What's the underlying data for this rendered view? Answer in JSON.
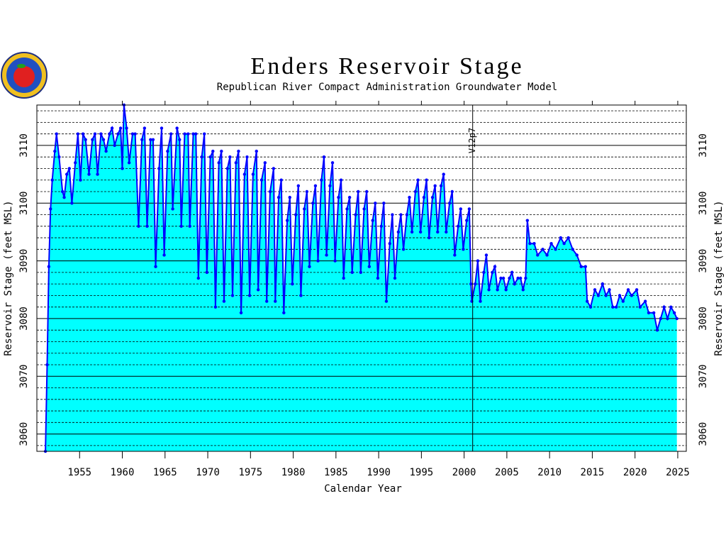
{
  "chart_data": {
    "type": "line",
    "title": "Enders Reservoir Stage",
    "subtitle": "Republican River Compact Administration Groundwater Model",
    "x_label": "Calendar Year",
    "y_label": "Reservoir Stage (feet MSL)",
    "xlim": [
      1950,
      2026
    ],
    "xticks": [
      1955,
      1960,
      1965,
      1970,
      1975,
      1980,
      1985,
      1990,
      1995,
      2000,
      2005,
      2010,
      2015,
      2020,
      2025
    ],
    "ylim": [
      3057,
      3117
    ],
    "yticks": [
      3060,
      3070,
      3080,
      3090,
      3100,
      3110
    ],
    "minor_yticks": [
      3058,
      3062,
      3064,
      3066,
      3068,
      3072,
      3074,
      3076,
      3078,
      3082,
      3084,
      3086,
      3088,
      3092,
      3094,
      3096,
      3098,
      3102,
      3104,
      3106,
      3108,
      3112,
      3114,
      3116
    ],
    "grid": true,
    "fill_color": "#00ffff",
    "annotations": [
      {
        "x": 2001,
        "label": "V12p7"
      }
    ],
    "x": [
      1951.0,
      1951.2,
      1951.4,
      1951.6,
      1951.8,
      1952.1,
      1952.3,
      1952.6,
      1953.0,
      1953.2,
      1953.5,
      1953.8,
      1954.1,
      1954.5,
      1954.8,
      1955.1,
      1955.4,
      1955.7,
      1956.1,
      1956.5,
      1956.8,
      1957.1,
      1957.5,
      1957.8,
      1958.1,
      1958.5,
      1958.8,
      1959.1,
      1959.5,
      1959.8,
      1960.0,
      1960.2,
      1960.5,
      1960.8,
      1961.2,
      1961.5,
      1961.9,
      1962.3,
      1962.6,
      1962.9,
      1963.3,
      1963.6,
      1963.9,
      1964.3,
      1964.6,
      1964.9,
      1965.3,
      1965.7,
      1965.9,
      1966.4,
      1966.7,
      1966.9,
      1967.3,
      1967.7,
      1967.9,
      1968.3,
      1968.6,
      1968.9,
      1969.3,
      1969.6,
      1969.9,
      1970.3,
      1970.6,
      1970.9,
      1971.3,
      1971.6,
      1971.9,
      1972.3,
      1972.6,
      1972.9,
      1973.3,
      1973.6,
      1973.9,
      1974.3,
      1974.6,
      1974.9,
      1975.3,
      1975.7,
      1975.9,
      1976.3,
      1976.7,
      1976.9,
      1977.3,
      1977.7,
      1977.9,
      1978.3,
      1978.6,
      1978.9,
      1979.3,
      1979.6,
      1979.9,
      1980.3,
      1980.6,
      1980.9,
      1981.3,
      1981.6,
      1981.9,
      1982.3,
      1982.6,
      1982.9,
      1983.3,
      1983.6,
      1983.9,
      1984.3,
      1984.6,
      1984.9,
      1985.3,
      1985.6,
      1985.9,
      1986.3,
      1986.6,
      1986.9,
      1987.3,
      1987.6,
      1987.9,
      1988.3,
      1988.6,
      1988.9,
      1989.3,
      1989.6,
      1989.9,
      1990.3,
      1990.6,
      1990.9,
      1991.3,
      1991.6,
      1991.9,
      1992.3,
      1992.6,
      1992.9,
      1993.3,
      1993.6,
      1993.9,
      1994.3,
      1994.6,
      1994.9,
      1995.3,
      1995.6,
      1995.9,
      1996.3,
      1996.6,
      1996.9,
      1997.3,
      1997.6,
      1997.9,
      1998.3,
      1998.6,
      1998.9,
      1999.3,
      1999.6,
      1999.9,
      2000.3,
      2000.6,
      2000.8,
      2000.9,
      2001.3,
      2001.6,
      2001.9,
      2002.3,
      2002.6,
      2002.9,
      2003.3,
      2003.6,
      2003.9,
      2004.3,
      2004.6,
      2004.9,
      2005.3,
      2005.6,
      2005.9,
      2006.3,
      2006.6,
      2006.9,
      2007.2,
      2007.4,
      2007.7,
      2008.2,
      2008.6,
      2009.2,
      2009.7,
      2010.2,
      2010.7,
      2011.3,
      2011.7,
      2012.2,
      2012.7,
      2013.2,
      2013.7,
      2014.2,
      2014.4,
      2014.8,
      2015.3,
      2015.7,
      2016.2,
      2016.6,
      2017.0,
      2017.4,
      2017.8,
      2018.2,
      2018.6,
      2019.2,
      2019.6,
      2020.2,
      2020.6,
      2021.2,
      2021.6,
      2022.2,
      2022.6,
      2023.0,
      2023.4,
      2023.8,
      2024.2,
      2024.6,
      2024.9
    ],
    "series": [
      {
        "color": "#0000ff",
        "values": [
          3057,
          3072,
          3089,
          3099,
          3104,
          3109,
          3112,
          3108,
          3102,
          3101,
          3105,
          3106,
          3100,
          3107,
          3112,
          3104,
          3112,
          3111,
          3105,
          3111,
          3112,
          3105,
          3112,
          3111,
          3109,
          3112,
          3113,
          3110,
          3112,
          3113,
          3106,
          3117,
          3113,
          3107,
          3112,
          3112,
          3096,
          3111,
          3113,
          3096,
          3111,
          3111,
          3089,
          3106,
          3113,
          3091,
          3109,
          3112,
          3099,
          3113,
          3111,
          3096,
          3112,
          3112,
          3096,
          3112,
          3112,
          3087,
          3108,
          3112,
          3088,
          3108,
          3109,
          3082,
          3107,
          3109,
          3083,
          3106,
          3108,
          3084,
          3107,
          3109,
          3081,
          3105,
          3108,
          3084,
          3105,
          3109,
          3085,
          3104,
          3107,
          3083,
          3102,
          3106,
          3083,
          3101,
          3104,
          3081,
          3097,
          3101,
          3086,
          3098,
          3103,
          3084,
          3099,
          3102,
          3089,
          3100,
          3103,
          3090,
          3104,
          3108,
          3091,
          3103,
          3107,
          3090,
          3101,
          3104,
          3087,
          3099,
          3101,
          3088,
          3098,
          3102,
          3088,
          3099,
          3102,
          3089,
          3097,
          3100,
          3087,
          3096,
          3100,
          3083,
          3093,
          3098,
          3087,
          3095,
          3098,
          3092,
          3098,
          3101,
          3095,
          3102,
          3104,
          3095,
          3101,
          3104,
          3094,
          3101,
          3103,
          3095,
          3103,
          3105,
          3095,
          3100,
          3102,
          3091,
          3096,
          3099,
          3092,
          3097,
          3099,
          3086,
          3083,
          3086,
          3090,
          3083,
          3088,
          3091,
          3085,
          3088,
          3089,
          3085,
          3087,
          3087,
          3085,
          3087,
          3088,
          3086,
          3087,
          3087,
          3085,
          3087,
          3097,
          3093,
          3093,
          3091,
          3092,
          3091,
          3093,
          3092,
          3094,
          3093,
          3094,
          3092,
          3091,
          3089,
          3089,
          3083,
          3082,
          3085,
          3084,
          3086,
          3084,
          3085,
          3082,
          3082,
          3084,
          3083,
          3085,
          3084,
          3085,
          3082,
          3083,
          3081,
          3081,
          3078,
          3080,
          3082,
          3080,
          3082,
          3081,
          3080
        ]
      }
    ]
  }
}
